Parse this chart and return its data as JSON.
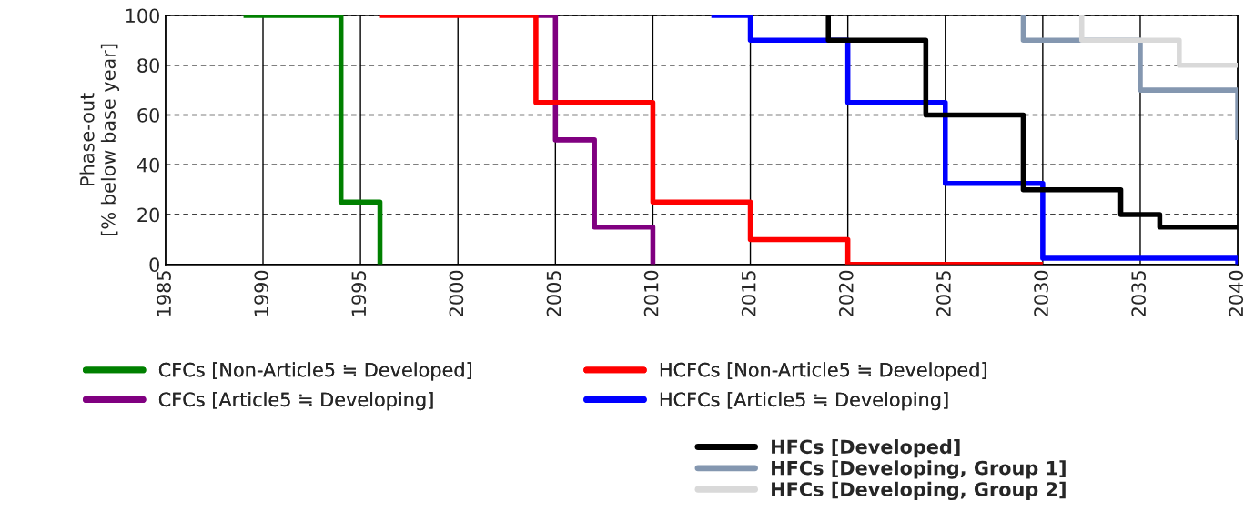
{
  "chart_data": {
    "type": "step",
    "ylabel": "Phase-out\n[% below base year]",
    "xlim": [
      1985,
      2040
    ],
    "xticks": [
      1985,
      1990,
      1995,
      2000,
      2005,
      2010,
      2015,
      2020,
      2025,
      2030,
      2035,
      2040
    ],
    "ylim": [
      0,
      100
    ],
    "yticks": [
      0,
      20,
      40,
      60,
      80,
      100
    ],
    "grid": true,
    "legend": "bottom",
    "marker": "none",
    "line_style": "solid",
    "series": [
      {
        "name": "CFCs [Non-Article5 ≒ Developed]",
        "color": "#008000",
        "x": [
          1989,
          1994,
          1996
        ],
        "values": [
          100,
          25,
          0
        ]
      },
      {
        "name": "CFCs [Article5 ≒ Developing]",
        "color": "#800080",
        "x": [
          2004,
          2005,
          2007,
          2010
        ],
        "values": [
          100,
          50,
          15,
          0
        ]
      },
      {
        "name": "HCFCs [Non-Article5 ≒ Developed]",
        "color": "#ff0000",
        "x": [
          1996,
          2004,
          2010,
          2015,
          2020,
          2030
        ],
        "values": [
          100,
          65,
          25,
          10,
          0,
          0
        ]
      },
      {
        "name": "HCFCs [Article5 ≒ Developing]",
        "color": "#0000ff",
        "x": [
          2013,
          2015,
          2020,
          2025,
          2030,
          2040
        ],
        "values": [
          100,
          90,
          65,
          32.5,
          2.5,
          0
        ]
      },
      {
        "name": "HFCs [Developed]",
        "color": "#000000",
        "x": [
          2019,
          2019,
          2024,
          2029,
          2034,
          2036,
          2040
        ],
        "values": [
          100,
          90,
          60,
          30,
          20,
          15,
          15
        ]
      },
      {
        "name": "HFCs [Developing, Group 1]",
        "color": "#8497b0",
        "x": [
          2029,
          2029,
          2035,
          2040
        ],
        "values": [
          100,
          90,
          70,
          50
        ]
      },
      {
        "name": "HFCs [Developing, Group 2]",
        "color": "#d9d9d9",
        "x": [
          2032,
          2032,
          2037,
          2040
        ],
        "values": [
          100,
          90,
          80,
          80
        ]
      }
    ]
  }
}
